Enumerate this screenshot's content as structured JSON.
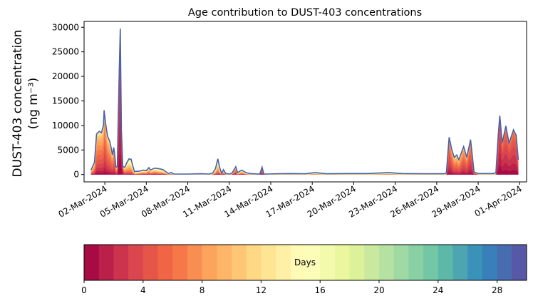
{
  "chart_data": {
    "type": "area",
    "title": "Age contribution to DUST-403 concentrations",
    "ylabel_line1": "DUST-403 concentration",
    "ylabel_line2": "(ng m⁻³)",
    "xlabel": "",
    "x_unit": "days since 01-Mar-2024 00:00",
    "xlim": [
      -0.5,
      31.5
    ],
    "ylim": [
      -1500,
      31200
    ],
    "yticks": [
      0,
      5000,
      10000,
      15000,
      20000,
      25000,
      30000
    ],
    "ytick_labels": [
      "0",
      "5000",
      "10000",
      "15000",
      "20000",
      "25000",
      "30000"
    ],
    "xticks": [
      1,
      4,
      7,
      10,
      13,
      16,
      19,
      22,
      25,
      28,
      31
    ],
    "xtick_labels": [
      "02-Mar-2024",
      "05-Mar-2024",
      "08-Mar-2024",
      "11-Mar-2024",
      "14-Mar-2024",
      "17-Mar-2024",
      "20-Mar-2024",
      "23-Mar-2024",
      "26-Mar-2024",
      "29-Mar-2024",
      "01-Apr-2024"
    ],
    "stacked_by": "age in days (30 one-day bins)",
    "total": {
      "x": [
        0,
        0.25,
        0.4,
        0.6,
        0.75,
        0.9,
        0.95,
        1.05,
        1.2,
        1.35,
        1.45,
        1.55,
        1.65,
        1.75,
        1.8,
        1.9,
        1.95,
        2.05,
        2.12,
        2.2,
        2.3,
        2.45,
        2.6,
        2.75,
        2.9,
        3.05,
        3.15,
        3.5,
        3.8,
        4.0,
        4.19,
        4.3,
        4.6,
        4.9,
        5.2,
        5.4,
        5.6,
        5.8,
        6.0,
        7.0,
        8.0,
        8.5,
        8.8,
        9.0,
        9.17,
        9.3,
        9.45,
        9.58,
        9.75,
        10.0,
        10.2,
        10.47,
        10.6,
        10.9,
        11.2,
        11.5,
        12.2,
        12.37,
        12.5,
        13.5,
        14.4,
        15.5,
        16.2,
        17.0,
        18.5,
        20.0,
        21.5,
        22.5,
        24.0,
        25.5,
        25.7,
        25.9,
        26.1,
        26.27,
        26.45,
        26.6,
        26.95,
        27.17,
        27.45,
        27.7,
        28.0,
        29.0,
        29.28,
        29.45,
        29.56,
        29.74,
        30.0,
        30.23,
        30.55,
        30.75,
        30.9
      ],
      "y": [
        900,
        2500,
        8300,
        8800,
        8500,
        10000,
        13100,
        10500,
        7800,
        6800,
        5600,
        4000,
        5500,
        3000,
        1500,
        1600,
        8300,
        22000,
        29700,
        9000,
        1600,
        1500,
        2500,
        3200,
        3100,
        1500,
        600,
        700,
        900,
        800,
        1400,
        900,
        1300,
        1200,
        1000,
        600,
        200,
        400,
        100,
        100,
        150,
        100,
        300,
        1200,
        3200,
        1500,
        200,
        1000,
        200,
        100,
        300,
        1600,
        400,
        900,
        400,
        200,
        100,
        1500,
        100,
        150,
        200,
        150,
        400,
        150,
        200,
        200,
        400,
        200,
        150,
        150,
        300,
        7600,
        5000,
        3500,
        4000,
        3000,
        5700,
        3500,
        7100,
        500,
        200,
        200,
        300,
        8000,
        12000,
        6400,
        9900,
        6400,
        9100,
        8000,
        3000
      ]
    },
    "mean_age_days": [
      8,
      7,
      6,
      6,
      6,
      6,
      5,
      5,
      6,
      6,
      6,
      6,
      5,
      5,
      6,
      6,
      3,
      2,
      2,
      2,
      4,
      8,
      9,
      10,
      10,
      10,
      12,
      10,
      9,
      9,
      8,
      9,
      9,
      10,
      10,
      11,
      14,
      12,
      18,
      18,
      18,
      18,
      14,
      11,
      10,
      10,
      14,
      9,
      14,
      18,
      14,
      6,
      12,
      9,
      12,
      14,
      18,
      4,
      18,
      18,
      18,
      18,
      16,
      18,
      18,
      18,
      16,
      18,
      18,
      18,
      14,
      4,
      5,
      6,
      6,
      6,
      5,
      5,
      4,
      6,
      18,
      18,
      16,
      3,
      2,
      3,
      3,
      3,
      3,
      3,
      4
    ]
  },
  "colorbar": {
    "label": "Days",
    "range": [
      0,
      30
    ],
    "ticks": [
      0,
      4,
      8,
      12,
      16,
      20,
      24,
      28
    ],
    "tick_labels": [
      "0",
      "4",
      "8",
      "12",
      "16",
      "20",
      "24",
      "28"
    ],
    "bins": 30,
    "colormap_stops": [
      "#9e0142",
      "#d53e4f",
      "#f46d43",
      "#fdae61",
      "#fee08b",
      "#ffffbf",
      "#e6f598",
      "#abdda4",
      "#66c2a5",
      "#3288bd",
      "#5e4fa2"
    ]
  },
  "colors": {
    "total_line": "#4a62a8"
  }
}
